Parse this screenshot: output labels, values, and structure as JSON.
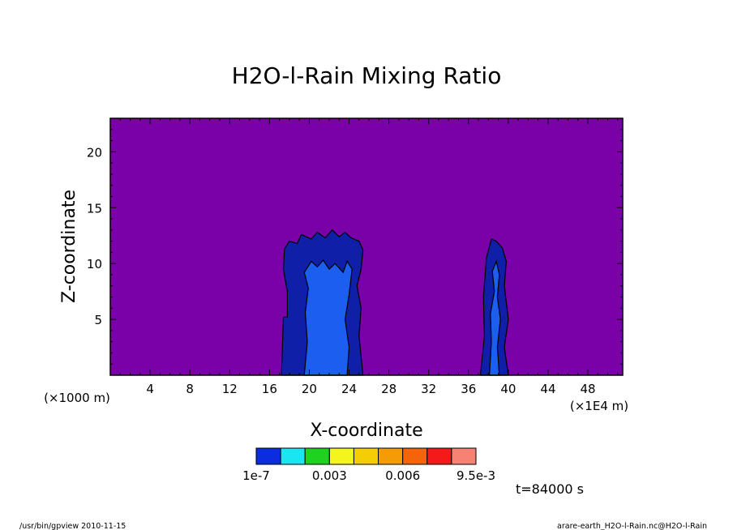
{
  "chart_data": {
    "type": "contour",
    "title": "H2O-l-Rain Mixing Ratio",
    "xlabel": "X-coordinate",
    "ylabel": "Z-coordinate",
    "x_unit": "(×1E4 m)",
    "y_unit": "(×1000 m)",
    "xlim": [
      0,
      51.5
    ],
    "ylim": [
      0,
      23
    ],
    "x_ticks": [
      4,
      8,
      12,
      16,
      20,
      24,
      28,
      32,
      36,
      40,
      44,
      48
    ],
    "x_tick_labels": [
      "4",
      "8",
      "12",
      "16",
      "20",
      "24",
      "28",
      "32",
      "36",
      "40",
      "44",
      "48"
    ],
    "y_ticks": [
      5,
      10,
      15,
      20
    ],
    "y_tick_labels": [
      "5",
      "10",
      "15",
      "20"
    ],
    "background_color": "#7a00a8",
    "levels": [
      {
        "value": 1e-07,
        "color": "#0a2de0"
      },
      {
        "value": 0.001,
        "color": "#19e6f0"
      },
      {
        "value": 0.002,
        "color": "#1fd21f"
      },
      {
        "value": 0.003,
        "color": "#f5f51e"
      },
      {
        "value": 0.004,
        "color": "#f5cd05"
      },
      {
        "value": 0.005,
        "color": "#f59b05"
      },
      {
        "value": 0.006,
        "color": "#f5640a"
      },
      {
        "value": 0.0075,
        "color": "#f51919"
      },
      {
        "value": 0.0095,
        "color": "#f58273"
      }
    ],
    "colorbar_labels": [
      "1e-7",
      "0.003",
      "0.006",
      "9.5e-3"
    ],
    "contour_fill_colors": {
      "outer": "#0f1fa8",
      "inner": "#1b5ef0"
    },
    "regions": [
      {
        "name": "cell-left-outer",
        "level": "outer",
        "polygon": [
          [
            17.2,
            0
          ],
          [
            17.4,
            5.2
          ],
          [
            17.8,
            5.2
          ],
          [
            17.8,
            7.5
          ],
          [
            17.4,
            9.5
          ],
          [
            17.5,
            11.3
          ],
          [
            18.0,
            12.0
          ],
          [
            18.8,
            11.8
          ],
          [
            19.2,
            12.6
          ],
          [
            20.2,
            12.2
          ],
          [
            20.8,
            12.8
          ],
          [
            21.6,
            12.3
          ],
          [
            22.3,
            13.0
          ],
          [
            23.0,
            12.4
          ],
          [
            23.6,
            12.8
          ],
          [
            24.2,
            12.3
          ],
          [
            25.0,
            12.0
          ],
          [
            25.4,
            11.2
          ],
          [
            25.2,
            9.5
          ],
          [
            24.8,
            8.0
          ],
          [
            25.2,
            6.0
          ],
          [
            25.0,
            3.5
          ],
          [
            25.4,
            0
          ]
        ]
      },
      {
        "name": "cell-left-inner",
        "level": "inner",
        "polygon": [
          [
            19.5,
            0
          ],
          [
            19.8,
            3.0
          ],
          [
            19.6,
            5.6
          ],
          [
            19.9,
            7.8
          ],
          [
            19.5,
            9.2
          ],
          [
            20.2,
            10.2
          ],
          [
            20.8,
            9.7
          ],
          [
            21.4,
            10.3
          ],
          [
            22.0,
            9.5
          ],
          [
            22.6,
            10.0
          ],
          [
            23.4,
            9.2
          ],
          [
            23.8,
            10.2
          ],
          [
            24.3,
            9.5
          ],
          [
            24.0,
            7.2
          ],
          [
            23.6,
            5.0
          ],
          [
            24.0,
            2.5
          ],
          [
            23.8,
            0
          ]
        ]
      },
      {
        "name": "cell-right-outer",
        "level": "outer",
        "polygon": [
          [
            37.2,
            0
          ],
          [
            37.6,
            3.5
          ],
          [
            37.5,
            7.0
          ],
          [
            37.8,
            10.5
          ],
          [
            38.3,
            12.2
          ],
          [
            38.8,
            12.0
          ],
          [
            39.4,
            11.4
          ],
          [
            39.8,
            10.2
          ],
          [
            39.6,
            8.0
          ],
          [
            40.0,
            5.0
          ],
          [
            39.6,
            2.5
          ],
          [
            40.0,
            0
          ]
        ]
      },
      {
        "name": "cell-right-inner",
        "level": "inner",
        "polygon": [
          [
            38.1,
            0
          ],
          [
            38.3,
            3.0
          ],
          [
            38.2,
            5.5
          ],
          [
            38.6,
            7.5
          ],
          [
            38.4,
            9.3
          ],
          [
            38.8,
            10.2
          ],
          [
            39.1,
            9.0
          ],
          [
            38.9,
            7.0
          ],
          [
            39.2,
            5.0
          ],
          [
            38.9,
            2.5
          ],
          [
            39.1,
            0
          ]
        ]
      }
    ],
    "time_label": "t=84000 s"
  },
  "footer": {
    "program": "/usr/bin/gpview  2010-11-15",
    "source": "arare-earth_H2O-l-Rain.nc@H2O-l-Rain"
  }
}
